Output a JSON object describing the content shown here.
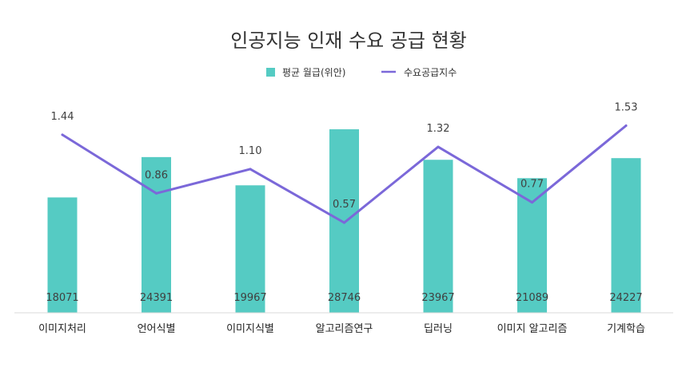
{
  "chart_data": {
    "type": "bar",
    "title": "인공지능 인재 수요 공급 현황",
    "categories": [
      "이미지처리",
      "언어식별",
      "이미지식별",
      "알고리즘연구",
      "딥러닝",
      "이미지 알고리즘",
      "기계학습"
    ],
    "series": [
      {
        "name": "평균 월급(위안)",
        "type": "bar",
        "axis": "left",
        "color": "#55CBC3",
        "values": [
          18071,
          24391,
          19967,
          28746,
          23967,
          21089,
          24227
        ],
        "labels": [
          "18071",
          "24391",
          "19967",
          "28746",
          "23967",
          "21089",
          "24227"
        ]
      },
      {
        "name": "수요공급지수",
        "type": "line",
        "axis": "right",
        "color": "#7B68D9",
        "values": [
          1.44,
          0.86,
          1.1,
          0.57,
          1.32,
          0.77,
          1.53
        ],
        "labels": [
          "1.44",
          "0.86",
          "1.10",
          "0.57",
          "1.32",
          "0.77",
          "1.53"
        ]
      }
    ],
    "bar_axis_range": [
      0,
      36000
    ],
    "line_axis_range": [
      0.1,
      1.9
    ],
    "legend_position": "top-center",
    "grid": false,
    "axes_visible": false
  }
}
